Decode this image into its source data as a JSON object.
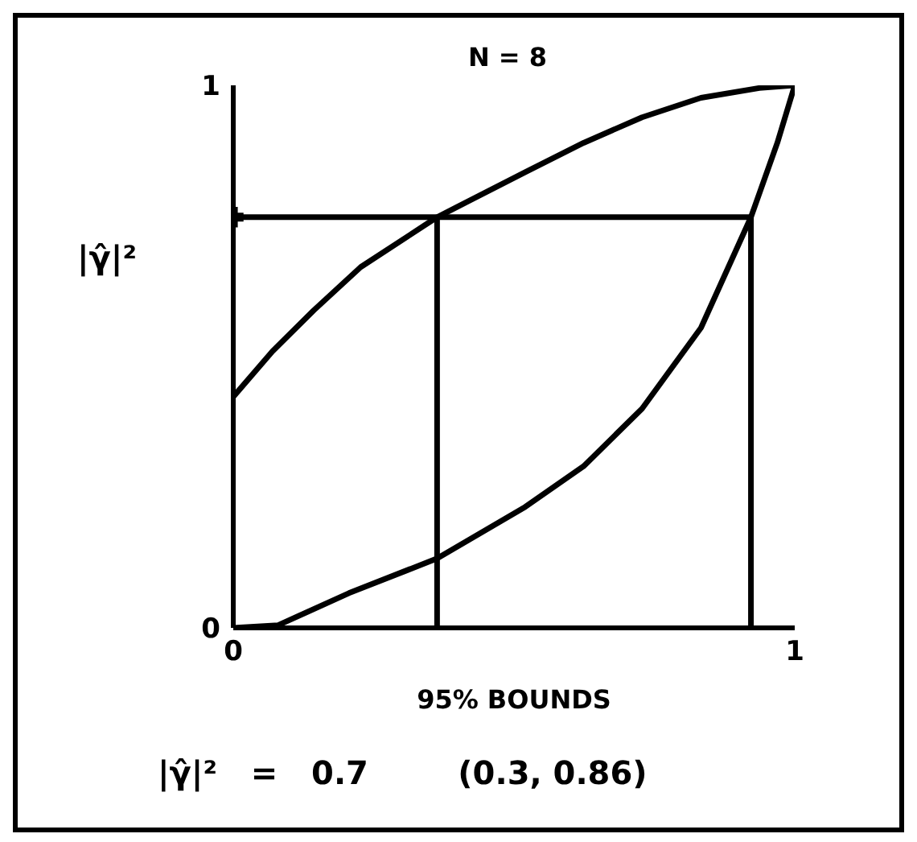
{
  "chart_data": {
    "type": "line",
    "title": "N = 8",
    "xlabel": "95% BOUNDS",
    "ylabel": "|γ̂|²",
    "annotations": [
      "|γ̂|²   =   0.7        (0.3, 0.86)"
    ],
    "xlim": [
      0,
      1
    ],
    "ylim": [
      0,
      1
    ],
    "xticks": [
      0,
      1
    ],
    "yticks": [
      0,
      1
    ],
    "grid": false,
    "legend": false,
    "marker": "none",
    "line_style": "solid",
    "series": [
      {
        "color": "#000000",
        "x": [
          0,
          0.07,
          0.143,
          0.227,
          0.363,
          0.52,
          0.624,
          0.728,
          0.833,
          0.937,
          1
        ],
        "values": [
          0.426,
          0.51,
          0.585,
          0.665,
          0.757,
          0.84,
          0.894,
          0.941,
          0.977,
          0.995,
          1
        ]
      },
      {
        "color": "#000000",
        "x": [
          0,
          0.08,
          0.206,
          0.363,
          0.52,
          0.624,
          0.728,
          0.833,
          0.922,
          0.969,
          1
        ],
        "values": [
          0,
          0.005,
          0.064,
          0.128,
          0.223,
          0.298,
          0.404,
          0.553,
          0.757,
          0.894,
          1
        ]
      },
      {
        "color": "#000000",
        "x": [
          0,
          0.922
        ],
        "values": [
          0.757,
          0.757
        ]
      },
      {
        "color": "#000000",
        "x": [
          0.363,
          0.363
        ],
        "values": [
          0,
          0.757
        ]
      },
      {
        "color": "#000000",
        "x": [
          0.922,
          0.922
        ],
        "values": [
          0,
          0.757
        ]
      },
      {
        "type": "scatter",
        "marker": "cross",
        "color": "#000000",
        "x": [
          0
        ],
        "values": [
          0.757
        ]
      }
    ]
  }
}
